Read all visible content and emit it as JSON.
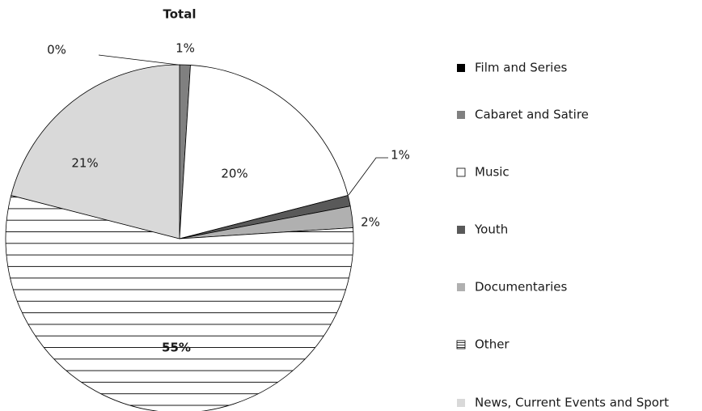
{
  "chart_data": {
    "type": "pie",
    "title": "Total",
    "categories": [
      "Film and Series",
      "Cabaret and Satire",
      "Music",
      "Youth",
      "Documentaries",
      "Other",
      "News, Current Events and Sport"
    ],
    "values": [
      0,
      1,
      20,
      1,
      2,
      55,
      21
    ],
    "value_labels": [
      "0%",
      "1%",
      "20%",
      "1%",
      "2%",
      "55%",
      "21%"
    ],
    "colors": [
      "#000000",
      "#808080",
      "#ffffff",
      "#595959",
      "#b0b0b0",
      "#ffffff",
      "#d9d9d9"
    ],
    "hatched": [
      false,
      false,
      false,
      false,
      false,
      true,
      false
    ],
    "legend": "right"
  }
}
